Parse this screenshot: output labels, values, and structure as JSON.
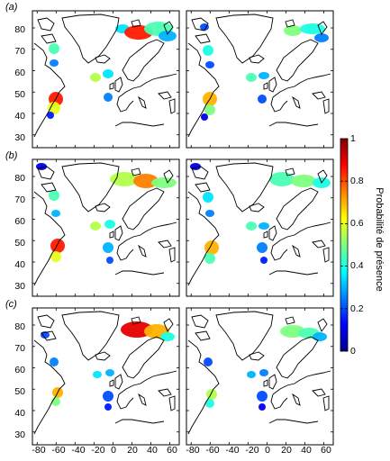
{
  "chart_data": {
    "type": "heatmap",
    "panels": [
      {
        "label": "(a)",
        "row": 0
      },
      {
        "label": "(b)",
        "row": 1
      },
      {
        "label": "(c)",
        "row": 2
      }
    ],
    "y_ticks": [
      "80",
      "70",
      "60",
      "50",
      "40",
      "30"
    ],
    "y_values": [
      80,
      70,
      60,
      50,
      40,
      30
    ],
    "ylim": [
      24,
      88
    ],
    "x_ticks": [
      "-80",
      "-60",
      "-40",
      "-20",
      "0",
      "20",
      "40",
      "60"
    ],
    "x_values": [
      -80,
      -60,
      -40,
      -20,
      0,
      20,
      40,
      60
    ],
    "xlim": [
      -85,
      70
    ],
    "colorbar": {
      "label": "Probabilité de présence",
      "ticks": [
        "1",
        "0.8",
        "0.6",
        "0.4",
        "0.2",
        "0"
      ],
      "tick_values": [
        1,
        0.8,
        0.6,
        0.4,
        0.2,
        0
      ],
      "range": [
        0,
        1
      ],
      "colormap": "jet"
    },
    "colors": {
      "frame": "#000000",
      "coast": "#000000",
      "background": "#ffffff"
    }
  }
}
